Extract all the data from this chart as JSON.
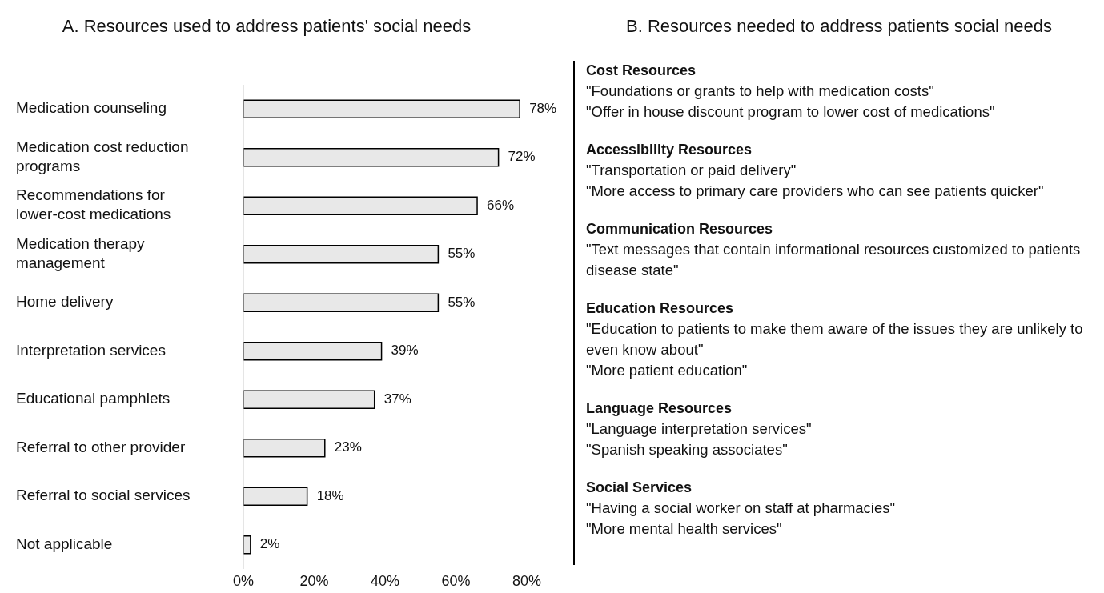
{
  "chart_data": [
    {
      "type": "bar",
      "title": "A. Resources used to address patients' social needs",
      "orientation": "horizontal",
      "categories": [
        "Medication counseling",
        "Medication cost reduction programs",
        "Recommendations for lower-cost medications",
        "Medication therapy management",
        "Home delivery",
        "Interpretation services",
        "Educational pamphlets",
        "Referral to other provider",
        "Referral to social services",
        "Not applicable"
      ],
      "values": [
        78,
        72,
        66,
        55,
        55,
        39,
        37,
        23,
        18,
        2
      ],
      "value_labels": [
        "78%",
        "72%",
        "66%",
        "55%",
        "55%",
        "39%",
        "37%",
        "23%",
        "18%",
        "2%"
      ],
      "color": "#e8e8e8",
      "xlim": [
        0,
        80
      ],
      "xticks": [
        {
          "value": 0,
          "label": "0%"
        },
        {
          "value": 20,
          "label": "20%"
        },
        {
          "value": 40,
          "label": "40%"
        },
        {
          "value": 60,
          "label": "60%"
        },
        {
          "value": 80,
          "label": "80%"
        }
      ]
    },
    {
      "type": "other",
      "title": "B. Resources needed to address patients social needs"
    },
    {
      "type": "other",
      "title": "Cost Resources",
      "annotations": [
        "\"Foundations or grants to help with medication costs\"",
        "\"Offer in house discount program to lower cost of medications\""
      ]
    },
    {
      "type": "other",
      "title": "Accessibility Resources",
      "annotations": [
        "\"Transportation or paid delivery\"",
        "\"More access to primary care providers who can see patients quicker\""
      ]
    },
    {
      "type": "other",
      "title": "Communication Resources",
      "annotations": [
        "\"Text messages that contain informational resources customized to patients disease state\""
      ]
    },
    {
      "type": "other",
      "title": "Education Resources",
      "annotations": [
        "\"Education to patients to make them aware of the issues they are unlikely to even know about\"",
        "\"More patient education\""
      ]
    },
    {
      "type": "other",
      "title": "Language Resources",
      "annotations": [
        "\"Language interpretation services\"",
        "\"Spanish speaking associates\""
      ]
    },
    {
      "type": "other",
      "title": "Social Services",
      "annotations": [
        "\"Having a social worker on staff at pharmacies\"",
        "\"More mental health services\""
      ]
    }
  ]
}
